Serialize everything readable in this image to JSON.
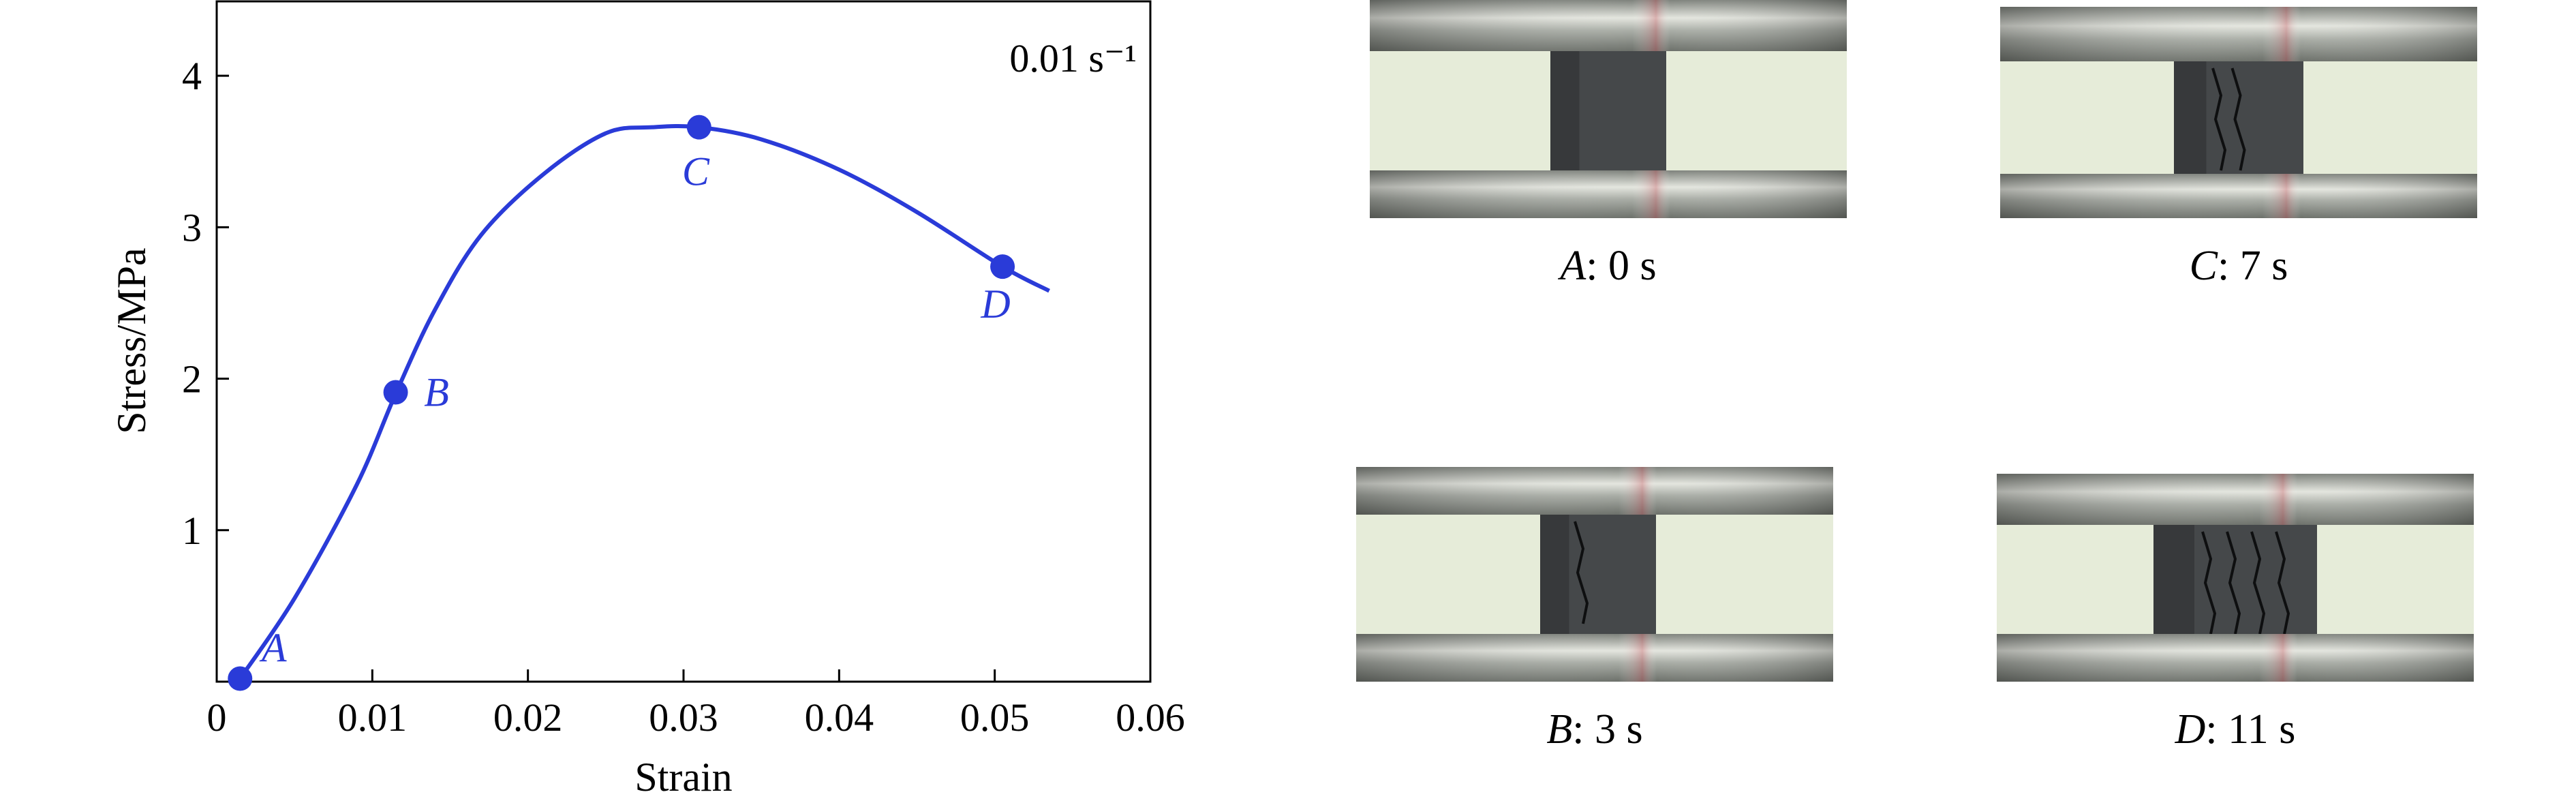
{
  "chart_data": {
    "type": "line",
    "title": "",
    "annotation": "0.01 s⁻¹",
    "xlabel": "Strain",
    "ylabel": "Stress/MPa",
    "xlim": [
      0,
      0.06
    ],
    "ylim": [
      0,
      4.5
    ],
    "x_ticks": [
      "0",
      "0.01",
      "0.02",
      "0.03",
      "0.04",
      "0.05",
      "0.06"
    ],
    "y_ticks": [
      "1",
      "2",
      "3",
      "4"
    ],
    "grid": false,
    "series": [
      {
        "color": "#2a3bd8",
        "points": [
          [
            0.0015,
            0.02
          ],
          [
            0.005,
            0.55
          ],
          [
            0.009,
            1.3
          ],
          [
            0.0115,
            1.9
          ],
          [
            0.014,
            2.45
          ],
          [
            0.017,
            2.95
          ],
          [
            0.021,
            3.35
          ],
          [
            0.025,
            3.62
          ],
          [
            0.028,
            3.66
          ],
          [
            0.031,
            3.66
          ],
          [
            0.035,
            3.58
          ],
          [
            0.04,
            3.38
          ],
          [
            0.045,
            3.1
          ],
          [
            0.0505,
            2.74
          ],
          [
            0.0535,
            2.58
          ]
        ]
      }
    ],
    "markers": [
      {
        "label": "A",
        "x": 0.0015,
        "y": 0.02
      },
      {
        "label": "B",
        "x": 0.0115,
        "y": 1.91
      },
      {
        "label": "C",
        "x": 0.031,
        "y": 3.66
      },
      {
        "label": "D",
        "x": 0.0505,
        "y": 2.74
      }
    ]
  },
  "photos": [
    {
      "point": "A",
      "time": ": 0 s"
    },
    {
      "point": "C",
      "time": ": 7 s"
    },
    {
      "point": "B",
      "time": ": 3 s"
    },
    {
      "point": "D",
      "time": ": 11 s"
    }
  ],
  "colors": {
    "curve": "#2a3bd8",
    "plate": "#b9bcb3",
    "background": "#e6ecd9",
    "sample": "#45484a"
  }
}
